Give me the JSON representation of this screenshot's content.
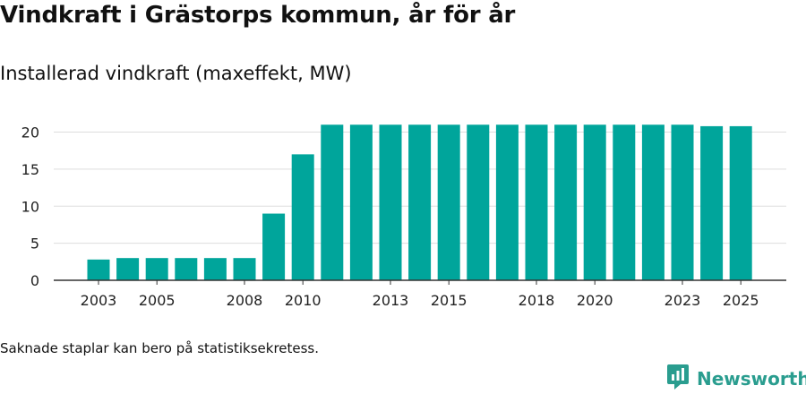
{
  "title": "Vindkraft i Grästorps kommun, år för år",
  "subtitle": "Installerad vindkraft (maxeffekt, MW)",
  "footnote": "Saknade staplar kan bero på statistiksekretess.",
  "brand": {
    "name": "Newsworthy",
    "icon": "newsworthy-logo-icon",
    "color": "#2a9d8f"
  },
  "colors": {
    "bar": "#00a59b",
    "grid": "#dddddd",
    "axis": "#333333"
  },
  "chart_data": {
    "type": "bar",
    "title": "Vindkraft i Grästorps kommun, år för år",
    "ylabel": "Installerad vindkraft (maxeffekt, MW)",
    "xlabel": "",
    "categories": [
      "2003",
      "2004",
      "2005",
      "2006",
      "2007",
      "2008",
      "2009",
      "2010",
      "2011",
      "2012",
      "2013",
      "2014",
      "2015",
      "2016",
      "2017",
      "2018",
      "2019",
      "2020",
      "2021",
      "2022",
      "2023",
      "2024",
      "2025"
    ],
    "values": [
      2.8,
      3.0,
      3.0,
      3.0,
      3.0,
      3.0,
      9.0,
      17.0,
      21.0,
      21.0,
      21.0,
      21.0,
      21.0,
      21.0,
      21.0,
      21.0,
      21.0,
      21.0,
      21.0,
      21.0,
      21.0,
      20.8,
      20.8
    ],
    "xtick_labels": [
      "2003",
      "2005",
      "2008",
      "2010",
      "2013",
      "2015",
      "2018",
      "2020",
      "2023",
      "2025"
    ],
    "yticks": [
      0,
      5,
      10,
      15,
      20
    ],
    "ylim": [
      0,
      22
    ],
    "grid": true,
    "legend": "none"
  }
}
